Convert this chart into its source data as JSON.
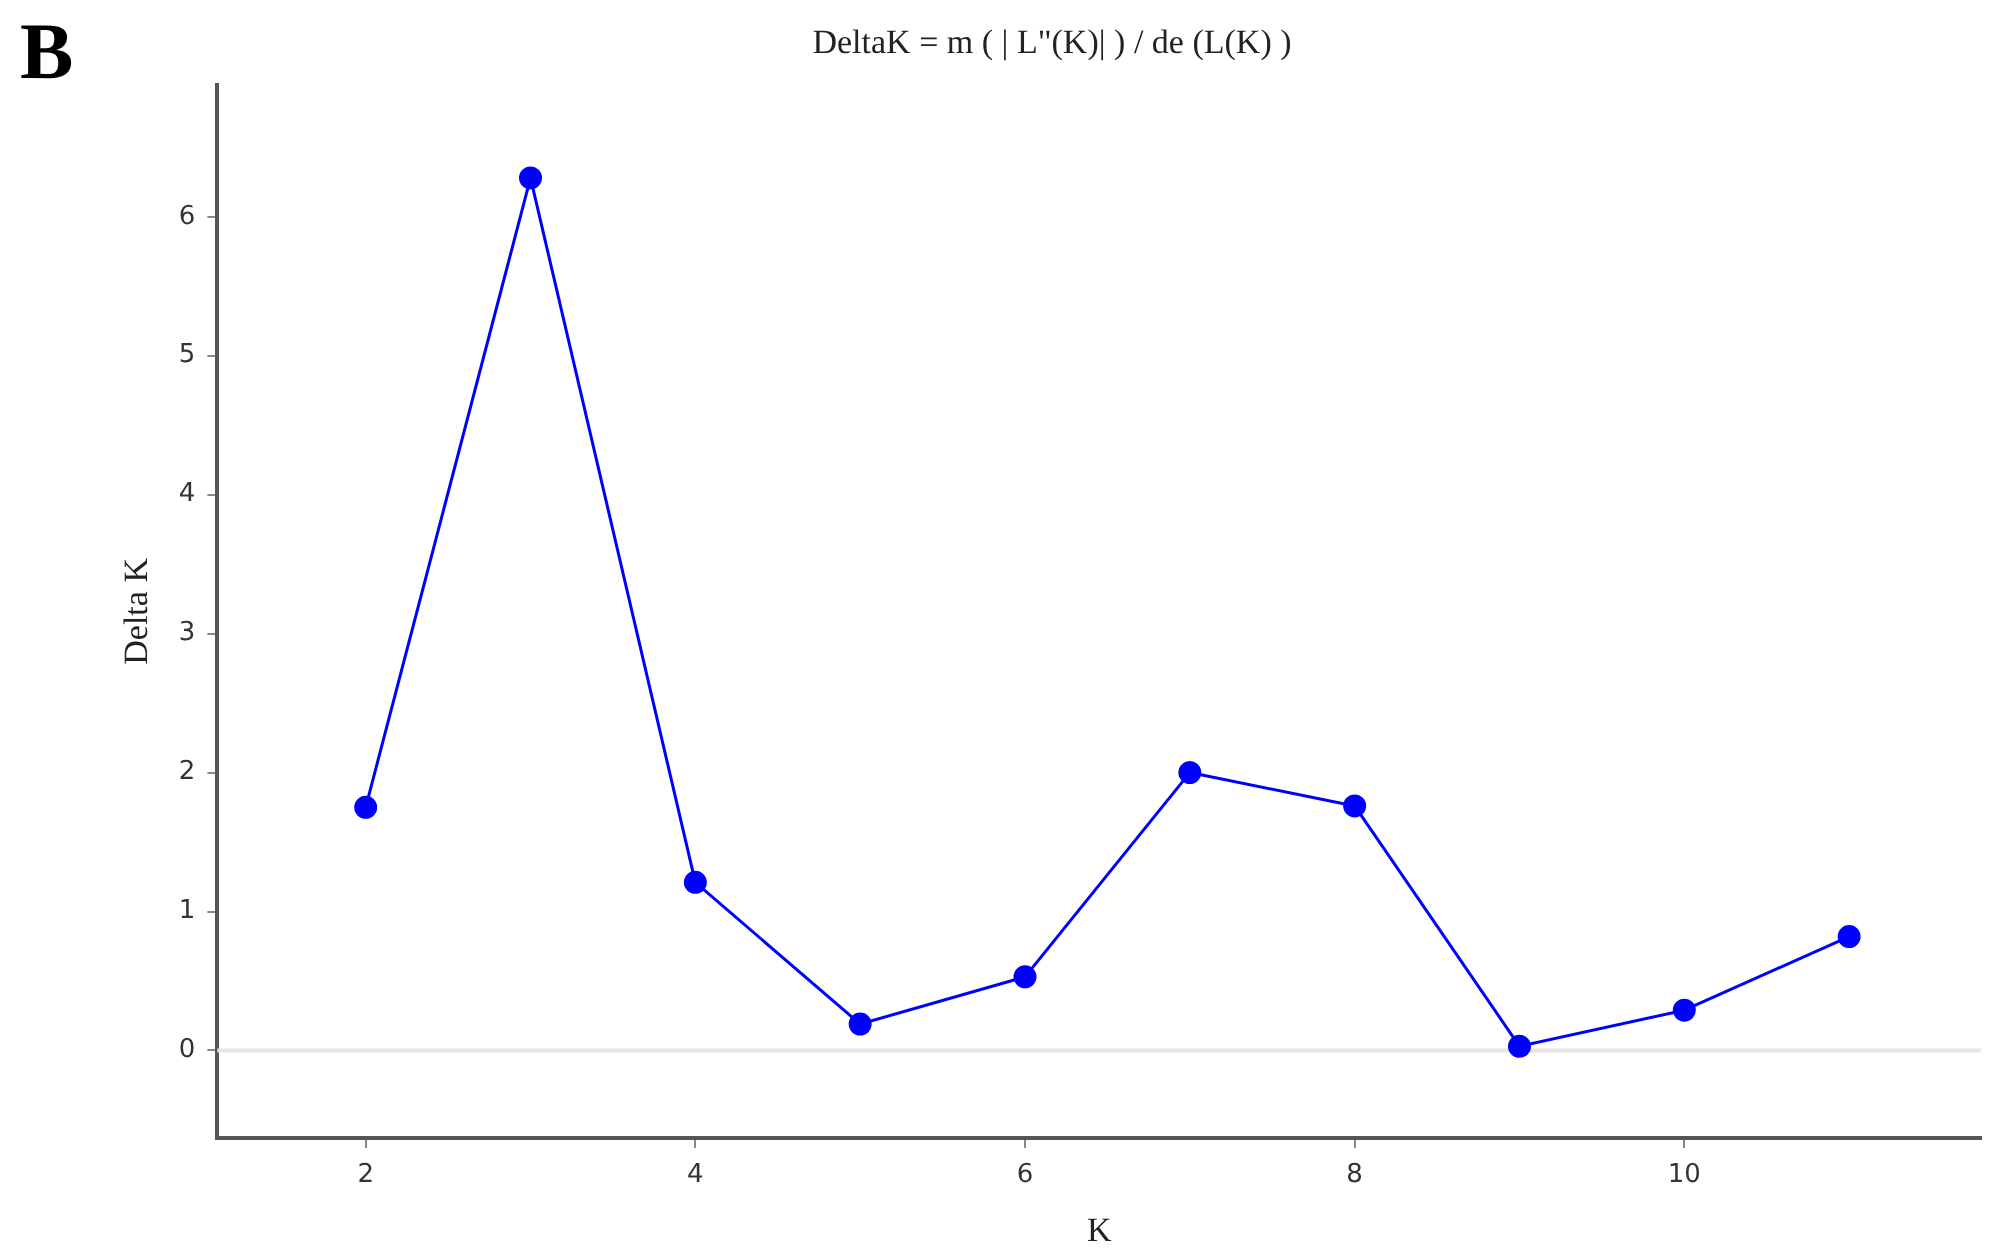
{
  "chart_data": {
    "type": "line",
    "title": "DeltaK = m ( | L\"(K)| ) / de (L(K) )",
    "xlabel": "K",
    "ylabel": "Delta K",
    "annotations": [
      "B"
    ],
    "x": [
      2,
      3,
      4,
      5,
      6,
      7,
      8,
      9,
      10,
      11
    ],
    "series": [
      {
        "color": "#0000ff",
        "values": [
          1.75,
          6.28,
          1.21,
          0.19,
          0.53,
          2.0,
          1.76,
          0.03,
          0.29,
          0.82
        ]
      }
    ],
    "xlim": [
      1.1,
      11.8
    ],
    "xticks": [
      2,
      4,
      6,
      8,
      10
    ],
    "ylim": [
      -0.63,
      6.95
    ],
    "yticks": [
      0,
      1,
      2,
      3,
      4,
      5,
      6
    ],
    "ref_lines": [
      {
        "axis": "y",
        "value": 0,
        "color": "#e6e6e6"
      }
    ],
    "grid": false,
    "legend": false,
    "marker": "circle",
    "line_style": "solid"
  }
}
